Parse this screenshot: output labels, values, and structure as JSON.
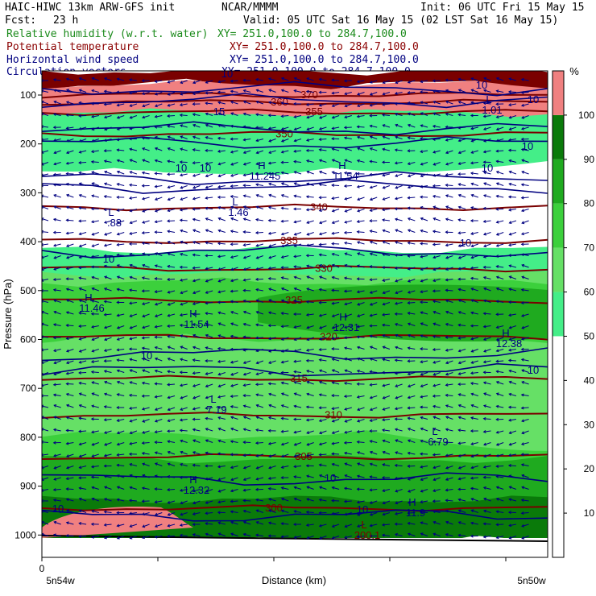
{
  "header": {
    "title": "HAIC-HIWC 13km ARW-GFS init",
    "org": "NCAR/MMMM",
    "init": "Init: 06 UTC Fri 15 May 15",
    "fcst_label": "Fcst:",
    "fcst_value": "23 h",
    "valid": "Valid: 05 UTC Sat 16 May 15 (02 LST Sat 16 May 15)",
    "fields": [
      {
        "name": "Relative humidity (w.r.t. water)",
        "xy": "XY= 251.0,100.0 to 284.7,100.0",
        "color": "#1a8a1a"
      },
      {
        "name": "Potential temperature",
        "xy": "XY= 251.0,100.0 to 284.7,100.0",
        "color": "#8b0000"
      },
      {
        "name": "Horizontal wind speed",
        "xy": "XY= 251.0,100.0 to 284.7,100.0",
        "color": "#000080"
      },
      {
        "name": "Circulation vectors",
        "xy": "XY= 251.0,100.0 to 284.7,100.0",
        "color": "#000080"
      }
    ]
  },
  "chart_data": {
    "type": "heatmap",
    "title": "",
    "xlabel": "Distance (km)",
    "ylabel": "Pressure (hPa)",
    "x_tick_labels": [
      "0"
    ],
    "x_endpoint_labels": [
      "5n54w",
      "5n50w"
    ],
    "y_ticks": [
      100,
      200,
      300,
      400,
      500,
      600,
      700,
      800,
      900,
      1000
    ],
    "ylim": [
      1080,
      30
    ],
    "colorbar": {
      "unit": "%",
      "levels": [
        10,
        20,
        30,
        40,
        50,
        60,
        70,
        80,
        90,
        100
      ],
      "colors": [
        "#ffffff",
        "#ffffff",
        "#ffffff",
        "#ffffff",
        "#ffffff",
        "#44ee88",
        "#66e066",
        "#3cd03c",
        "#1faa1f",
        "#0a7a0a",
        "#f08080"
      ]
    },
    "theta_contours": [
      {
        "value": 300,
        "p": 945
      },
      {
        "value": 305,
        "p": 840
      },
      {
        "value": 310,
        "p": 755
      },
      {
        "value": 315,
        "p": 680
      },
      {
        "value": 320,
        "p": 595
      },
      {
        "value": 325,
        "p": 520
      },
      {
        "value": 330,
        "p": 455
      },
      {
        "value": 335,
        "p": 398
      },
      {
        "value": 340,
        "p": 330
      },
      {
        "value": 350,
        "p": 180
      },
      {
        "value": 355,
        "p": 135
      },
      {
        "value": 360,
        "p": 115
      },
      {
        "value": 370,
        "p": 100
      }
    ],
    "wind_contour_labels": [
      "10",
      "10",
      "10",
      "10",
      "10",
      "10",
      "10",
      "10",
      "10",
      "10",
      "15",
      "10",
      "10",
      "10",
      "10"
    ],
    "extrema": [
      {
        "type": "H",
        "value": "11.46"
      },
      {
        "type": "H",
        "value": "11.54"
      },
      {
        "type": "H",
        "value": "12.31"
      },
      {
        "type": "H",
        "value": "12.38"
      },
      {
        "type": "L",
        "value": "7.19"
      },
      {
        "type": "L",
        "value": "6.79"
      },
      {
        "type": "H",
        "value": "12.32"
      },
      {
        "type": "H",
        "value": "11.9"
      },
      {
        "type": "L",
        "value": "1.46"
      },
      {
        "type": "L",
        "value": ".88"
      },
      {
        "type": "H",
        "value": "11.245"
      },
      {
        "type": "H",
        "value": "11.54"
      },
      {
        "type": "L",
        "value": "200.1"
      },
      {
        "type": "L",
        "value": "1.01"
      }
    ]
  }
}
